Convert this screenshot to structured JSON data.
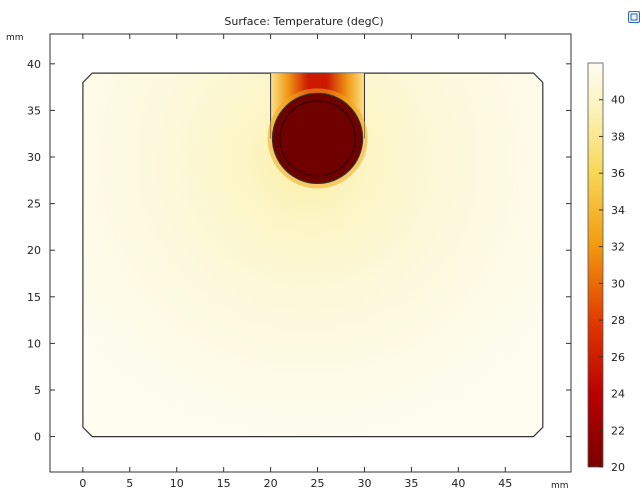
{
  "chart_data": {
    "type": "heatmap",
    "title": "Surface: Temperature (degC)",
    "x_unit": "mm",
    "y_unit": "mm",
    "xlim": [
      -3.5,
      52
    ],
    "ylim": [
      -3.8,
      43.2
    ],
    "xticks": [
      0,
      5,
      10,
      15,
      20,
      25,
      30,
      35,
      40,
      45
    ],
    "yticks": [
      0,
      5,
      10,
      15,
      20,
      25,
      30,
      35,
      40
    ],
    "grid": false,
    "legend_position": "right",
    "colorbar": {
      "min": 20,
      "max": 42,
      "ticks": [
        20,
        22,
        24,
        26,
        28,
        30,
        32,
        34,
        36,
        38,
        40
      ]
    },
    "geometry": {
      "domain_outline_mm": [
        [
          2,
          0
        ],
        [
          48,
          0
        ],
        [
          49,
          1
        ],
        [
          49,
          38
        ],
        [
          48,
          39
        ],
        [
          1,
          39
        ],
        [
          0,
          38
        ],
        [
          0,
          1
        ],
        [
          1,
          0
        ]
      ],
      "slot_x_range_mm": [
        20,
        30
      ],
      "slot_top_mm": 39,
      "rod_center_mm": [
        25,
        32
      ],
      "rod_outer_radius_mm": 4.8,
      "rod_inner_radius_mm": 4.0
    },
    "temperature_field": {
      "ambient_max": 41.7,
      "rod_temperature": 20
    }
  },
  "ui": {
    "corner_icon_color": "#2d6bb3"
  }
}
